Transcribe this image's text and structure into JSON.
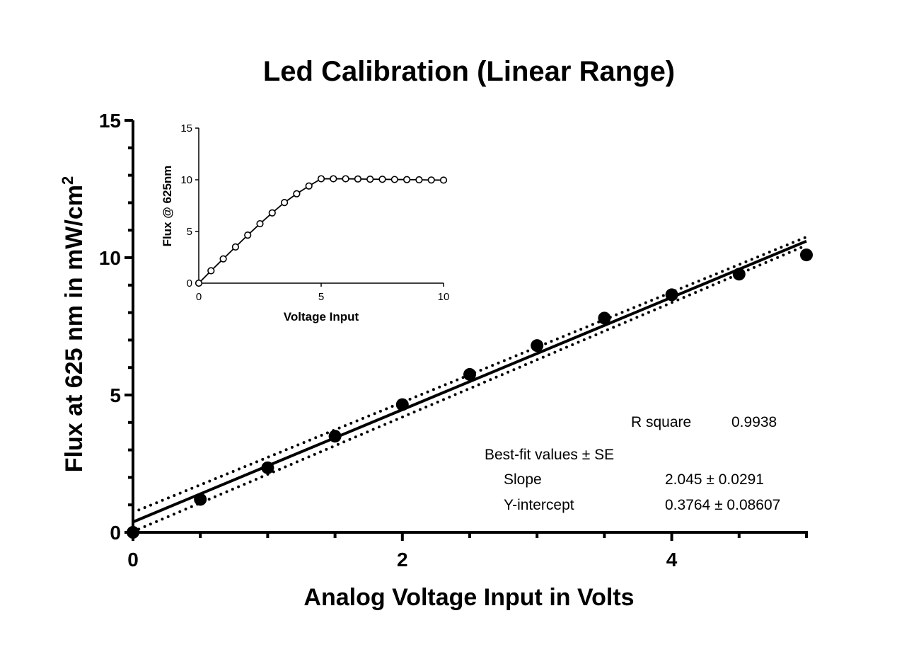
{
  "chart_data": [
    {
      "type": "scatter",
      "title": "Led Calibration (Linear Range)",
      "xlabel": "Analog Voltage Input in Volts",
      "ylabel": "Flux at 625 nm in mW/cm",
      "ylabel_sup": "2",
      "xlim": [
        0,
        5
      ],
      "ylim": [
        0,
        15
      ],
      "x_ticks": [
        0,
        2,
        4
      ],
      "x_tick_labels": [
        "0",
        "2",
        "4"
      ],
      "x_minor_ticks": [
        0.5,
        1,
        1.5,
        2.5,
        3,
        3.5,
        4.5,
        5
      ],
      "y_ticks": [
        0,
        5,
        10,
        15
      ],
      "y_tick_labels": [
        "0",
        "5",
        "10",
        "15"
      ],
      "y_minor_step": 1,
      "grid": false,
      "series": [
        {
          "x": [
            0,
            0.5,
            1,
            1.5,
            2,
            2.5,
            3,
            3.5,
            4,
            4.5,
            5
          ],
          "y": [
            0.0,
            1.2,
            2.35,
            3.5,
            4.65,
            5.75,
            6.8,
            7.8,
            8.65,
            9.4,
            10.1
          ],
          "marker": "filled-circle",
          "color": "#000000"
        }
      ],
      "fit": {
        "type": "linear",
        "slope": 2.045,
        "intercept": 0.3764,
        "x_range": [
          0,
          5
        ],
        "confidence_band": {
          "style": "dotted",
          "upper_offset": [
            0.35,
            0.15
          ],
          "lower_offset": [
            -0.35,
            -0.15
          ]
        }
      },
      "stats": {
        "r_square_label": "R square",
        "r_square_value": "0.9938",
        "header": "Best-fit values ± SE",
        "rows": [
          {
            "label": "Slope",
            "value": "2.045 ± 0.0291"
          },
          {
            "label": "Y-intercept",
            "value": "0.3764 ± 0.08607"
          }
        ]
      }
    },
    {
      "type": "line",
      "role": "inset",
      "xlabel": "Voltage Input",
      "ylabel": "Flux @ 625nm",
      "xlim": [
        0,
        10
      ],
      "ylim": [
        0,
        15
      ],
      "x_ticks": [
        0,
        5,
        10
      ],
      "x_tick_labels": [
        "0",
        "5",
        "10"
      ],
      "y_ticks": [
        0,
        5,
        10,
        15
      ],
      "y_tick_labels": [
        "0",
        "5",
        "10",
        "15"
      ],
      "grid": false,
      "series": [
        {
          "x": [
            0,
            0.5,
            1,
            1.5,
            2,
            2.5,
            3,
            3.5,
            4,
            4.5,
            5,
            5.5,
            6,
            6.5,
            7,
            7.5,
            8,
            8.5,
            9,
            9.5,
            10
          ],
          "y": [
            0.0,
            1.2,
            2.35,
            3.5,
            4.65,
            5.75,
            6.8,
            7.8,
            8.65,
            9.4,
            10.1,
            10.1,
            10.1,
            10.08,
            10.06,
            10.05,
            10.03,
            10.02,
            10.0,
            9.98,
            9.97
          ],
          "marker": "open-circle",
          "color": "#000000"
        }
      ]
    }
  ]
}
